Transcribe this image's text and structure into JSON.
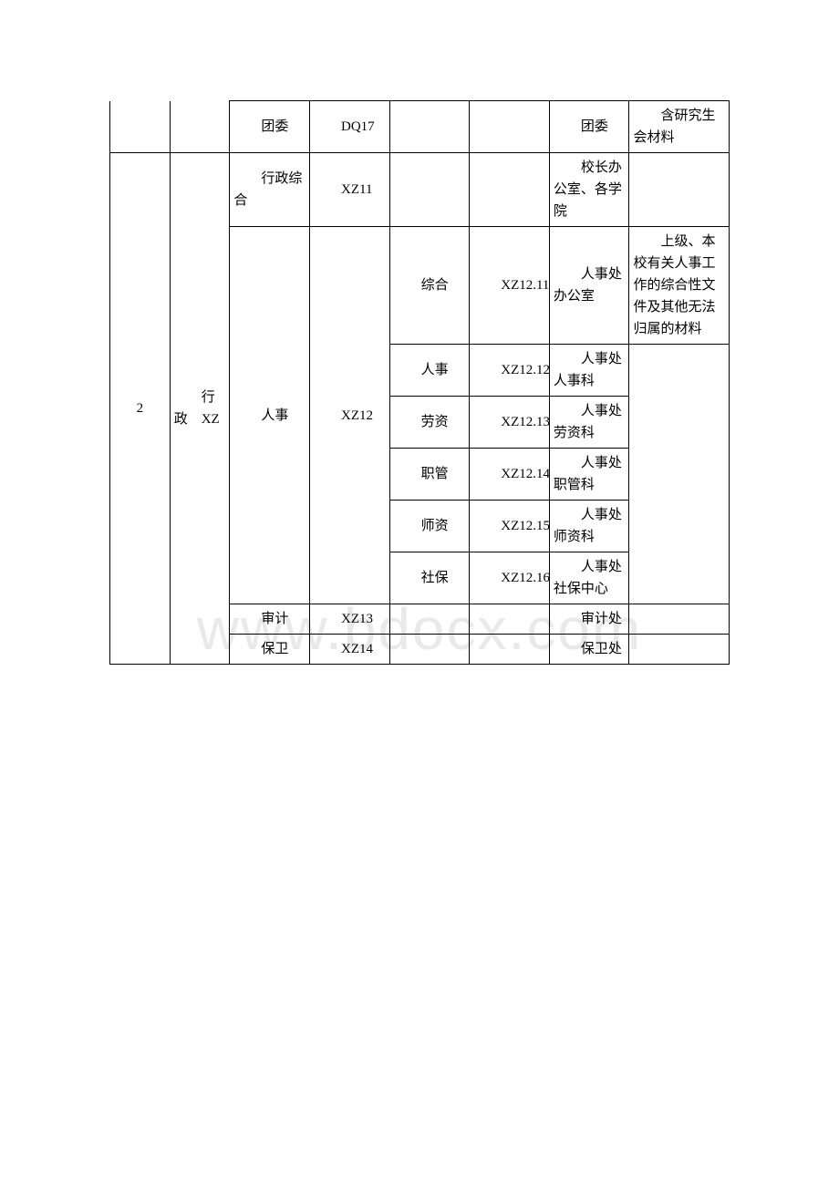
{
  "watermark": "www.bdocx.com",
  "rows": {
    "r1": {
      "col3": "团委",
      "col4": "DQ17",
      "col7": "团委",
      "col8": "含研究生会材料"
    },
    "r2": {
      "col1": "2",
      "col2": "行政　XZ",
      "col3": "行政综合",
      "col4": "XZ11",
      "col7": "校长办公室、各学院"
    },
    "r3": {
      "col3": "人事",
      "col4": "XZ12",
      "col5": "综合",
      "col6": "XZ12.11",
      "col7": "人事处办公室",
      "col8": "上级、本校有关人事工作的综合性文件及其他无法归属的材料"
    },
    "r4": {
      "col5": "人事",
      "col6": "XZ12.12",
      "col7": "人事处人事科"
    },
    "r5": {
      "col5": "劳资",
      "col6": "XZ12.13",
      "col7": "人事处劳资科"
    },
    "r6": {
      "col5": "职管",
      "col6": "XZ12.14",
      "col7": "人事处职管科"
    },
    "r7": {
      "col5": "师资",
      "col6": "XZ12.15",
      "col7": "人事处师资科"
    },
    "r8": {
      "col5": "社保",
      "col6": "XZ12.16",
      "col7": "人事处社保中心"
    },
    "r9": {
      "col3": "审计",
      "col4": "XZ13",
      "col7": "审计处"
    },
    "r10": {
      "col3": "保卫",
      "col4": "XZ14",
      "col7": "保卫处"
    }
  }
}
